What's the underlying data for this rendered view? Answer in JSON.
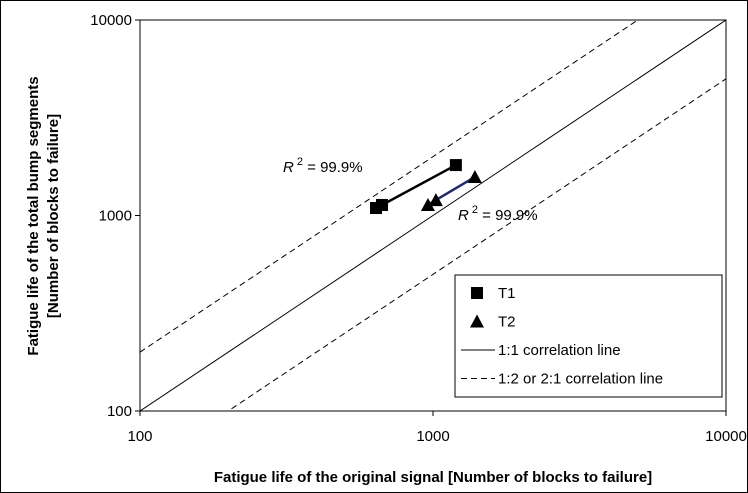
{
  "chart_data": {
    "type": "scatter",
    "xlabel": "Fatigue life of the original signal [Number of blocks to failure]",
    "ylabel": [
      "Fatigue life of the total bump segments",
      "[Number of blocks to failure]"
    ],
    "xscale": "log",
    "yscale": "log",
    "xlim": [
      100,
      10000
    ],
    "ylim": [
      100,
      10000
    ],
    "xticks": [
      100,
      1000,
      10000
    ],
    "yticks": [
      100,
      1000,
      10000
    ],
    "series": [
      {
        "name": "T1",
        "marker": "square",
        "color": "#000000",
        "line_color": "#000000",
        "x": [
          639,
          670,
          1197
        ],
        "values": [
          1092,
          1132,
          1811
        ]
      },
      {
        "name": "T2",
        "marker": "triangle",
        "color": "#000000",
        "line_color": "#1f2a6b",
        "x": [
          961,
          1023,
          1390
        ],
        "values": [
          1132,
          1199,
          1574
        ]
      }
    ],
    "reference_lines": [
      {
        "name": "1:1 correlation line",
        "style": "solid",
        "factors": [
          1
        ]
      },
      {
        "name": "1:2 or 2:1 correlation line",
        "style": "dashed",
        "factors": [
          2,
          0.5
        ]
      }
    ],
    "annotations": [
      {
        "symbol": "R",
        "superscript": "2",
        "text": " = 99.9%"
      },
      {
        "symbol": "R",
        "superscript": "2",
        "text": " = 99.9%"
      }
    ],
    "legend": "lower right"
  }
}
